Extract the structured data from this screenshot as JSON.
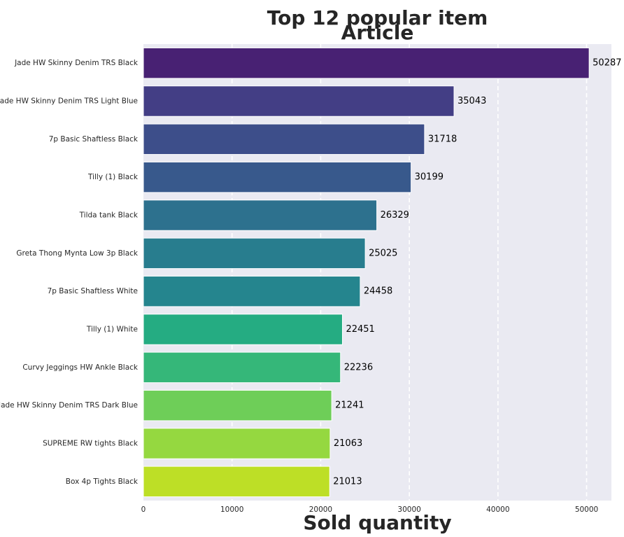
{
  "chart_data": {
    "type": "bar",
    "orientation": "horizontal",
    "title_line1": "Top 12 popular item",
    "title_line2": "Article",
    "xlabel": "Sold quantity",
    "ylabel": "",
    "xlim": [
      0,
      52800
    ],
    "xticks": [
      0,
      10000,
      20000,
      30000,
      40000,
      50000
    ],
    "xtick_labels": [
      "0",
      "10000",
      "20000",
      "30000",
      "40000",
      "50000"
    ],
    "grid": true,
    "categories": [
      "Jade HW Skinny Denim TRS Black",
      "Jade HW Skinny Denim TRS Light Blue",
      "7p Basic Shaftless Black",
      "Tilly (1) Black",
      "Tilda tank Black",
      "Greta Thong Mynta Low 3p Black",
      "7p Basic Shaftless White",
      "Tilly (1) White",
      "Curvy Jeggings HW Ankle Black",
      "Jade HW Skinny Denim TRS Dark Blue",
      "SUPREME RW tights Black",
      "Box 4p Tights Black"
    ],
    "values": [
      50287,
      35043,
      31718,
      30199,
      26329,
      25025,
      24458,
      22451,
      22236,
      21241,
      21063,
      21013
    ],
    "value_labels": [
      "50287",
      "35043",
      "31718",
      "30199",
      "26329",
      "25025",
      "24458",
      "22451",
      "22236",
      "21241",
      "21063",
      "21013"
    ],
    "colors": [
      "#482173",
      "#433e85",
      "#3d4e8a",
      "#38598c",
      "#2d718e",
      "#287d8e",
      "#25858e",
      "#25ac82",
      "#35b779",
      "#6ece58",
      "#95d840",
      "#bddf26"
    ],
    "background_color": "#eaeaf2",
    "grid_color": "#ffffff"
  }
}
